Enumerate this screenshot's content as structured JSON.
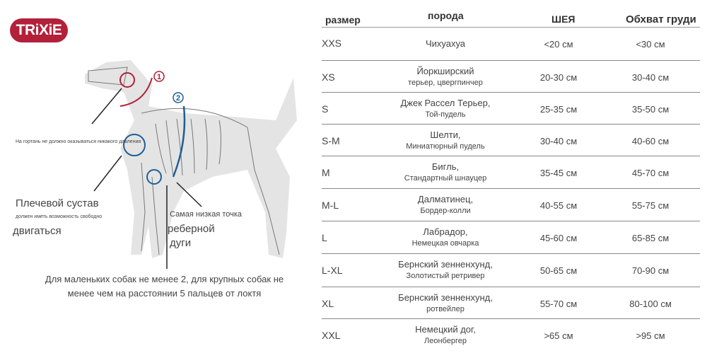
{
  "logo": "TRiXiE",
  "diagram": {
    "marker1": "1",
    "marker2": "2",
    "larynx_note": "На гортань не должно оказываться никакого давления",
    "shoulder_title": "Плечевой сустав",
    "shoulder_note": "должен иметь возможность свободно",
    "shoulder_move": "двигаться",
    "rib_note": "Самая низкая точка",
    "rib_word1": "реберной",
    "rib_word2": "дуги",
    "bottom_note_1": "Для маленьких собак не менее 2, для крупных собак не",
    "bottom_note_2": "менее чем на расстоянии 5 пальцев от локтя",
    "colors": {
      "neck": "#b3203a",
      "chest": "#1f5f94"
    }
  },
  "table": {
    "headers": [
      "размер",
      "порода",
      "ШЕЯ",
      "Обхват груди"
    ],
    "rows": [
      {
        "size": "XXS",
        "breed": "Чихуахуа",
        "breed2": "",
        "neck": "<20 см",
        "chest": "<30 см"
      },
      {
        "size": "XS",
        "breed": "Йоркширский",
        "breed2": "терьер, цвергпинчер",
        "neck": "20-30 см",
        "chest": "30-40 см"
      },
      {
        "size": "S",
        "breed": "Джек Рассел Терьер,",
        "breed2": "Той-пудель",
        "neck": "25-35 см",
        "chest": "35-50 см"
      },
      {
        "size": "S-M",
        "breed": "Шелти,",
        "breed2": "Миниатюрный пудель",
        "neck": "30-40 см",
        "chest": "40-60 см"
      },
      {
        "size": "M",
        "breed": "Бигль,",
        "breed2": "Стандартный шнауцер",
        "neck": "35-45 см",
        "chest": "45-70 см"
      },
      {
        "size": "M-L",
        "breed": "Далматинец,",
        "breed2": "Бордер-колли",
        "neck": "40-55 см",
        "chest": "55-75 см"
      },
      {
        "size": "L",
        "breed": "Лабрадор,",
        "breed2": "Немецкая овчарка",
        "neck": "45-60 см",
        "chest": "65-85 см"
      },
      {
        "size": "L-XL",
        "breed": "Бернский зенненхунд,",
        "breed2": "Золотистый ретривер",
        "neck": "50-65 см",
        "chest": "70-90 см"
      },
      {
        "size": "XL",
        "breed": "Бернский зенненхунд,",
        "breed2": "ротвейлер",
        "neck": "55-70 см",
        "chest": "80-100 см"
      },
      {
        "size": "XXL",
        "breed": "Немецкий дог,",
        "breed2": "Леонбергер",
        "neck": ">65 см",
        "chest": ">95 см"
      }
    ]
  }
}
